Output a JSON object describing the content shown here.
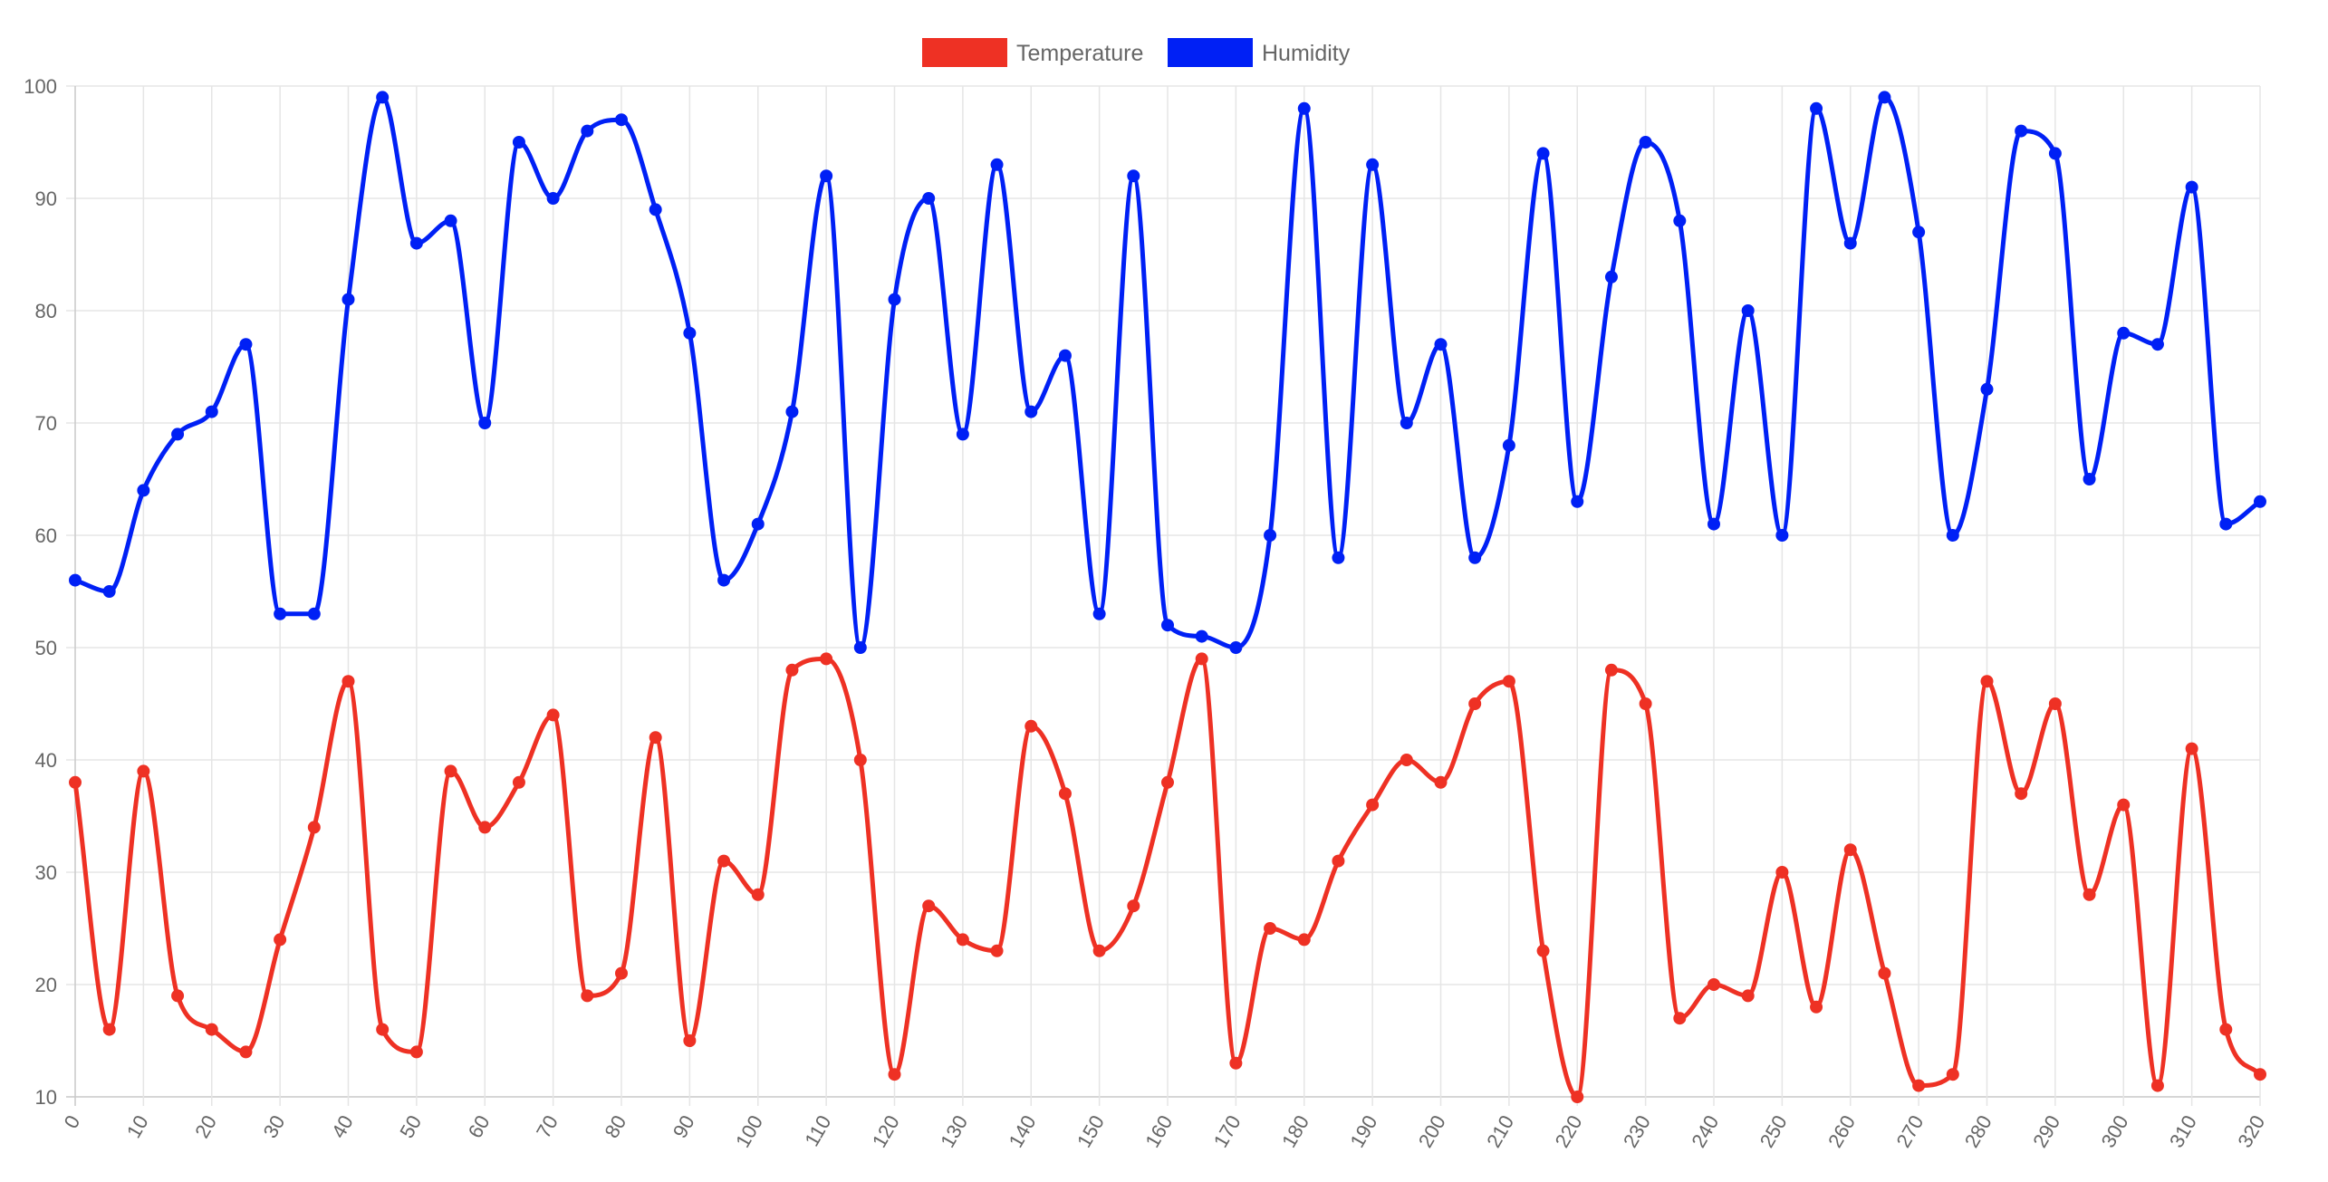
{
  "chart_data": {
    "type": "line",
    "title": "",
    "xlabel": "",
    "ylabel": "",
    "legend_position": "top",
    "grid": true,
    "ylim": [
      10,
      100
    ],
    "xlim": [
      0,
      320
    ],
    "x_ticks": [
      "0",
      "10",
      "20",
      "30",
      "40",
      "50",
      "60",
      "70",
      "80",
      "90",
      "100",
      "110",
      "120",
      "130",
      "140",
      "150",
      "160",
      "170",
      "180",
      "190",
      "200",
      "210",
      "220",
      "230",
      "240",
      "250",
      "260",
      "270",
      "280",
      "290",
      "300",
      "310",
      "320"
    ],
    "y_ticks": [
      "10",
      "20",
      "30",
      "40",
      "50",
      "60",
      "70",
      "80",
      "90",
      "100"
    ],
    "x": [
      0,
      5,
      10,
      15,
      20,
      25,
      30,
      35,
      40,
      45,
      50,
      55,
      60,
      65,
      70,
      75,
      80,
      85,
      90,
      95,
      100,
      105,
      110,
      115,
      120,
      125,
      130,
      135,
      140,
      145,
      150,
      155,
      160,
      165,
      170,
      175,
      180,
      185,
      190,
      195,
      200,
      205,
      210,
      215,
      220,
      225,
      230,
      235,
      240,
      245,
      250,
      255,
      260,
      265,
      270,
      275,
      280,
      285,
      290,
      295,
      300,
      305,
      310,
      315,
      320
    ],
    "series": [
      {
        "name": "Temperature",
        "color": "#EE3124",
        "values": [
          38,
          16,
          39,
          19,
          16,
          14,
          24,
          34,
          47,
          16,
          14,
          39,
          34,
          38,
          44,
          19,
          21,
          42,
          15,
          31,
          28,
          48,
          49,
          40,
          12,
          27,
          24,
          23,
          43,
          37,
          23,
          27,
          38,
          49,
          13,
          25,
          24,
          31,
          36,
          40,
          38,
          45,
          47,
          23,
          10,
          48,
          45,
          17,
          20,
          19,
          30,
          18,
          32,
          21,
          11,
          12,
          47,
          37,
          45,
          28,
          36,
          11,
          41,
          16,
          12
        ]
      },
      {
        "name": "Humidity",
        "color": "#0020F5",
        "values": [
          56,
          55,
          64,
          69,
          71,
          77,
          53,
          53,
          81,
          99,
          86,
          88,
          70,
          95,
          90,
          96,
          97,
          89,
          78,
          56,
          61,
          71,
          92,
          50,
          81,
          90,
          69,
          93,
          71,
          76,
          53,
          92,
          52,
          51,
          50,
          60,
          98,
          58,
          93,
          70,
          77,
          58,
          68,
          94,
          63,
          83,
          95,
          88,
          61,
          80,
          60,
          98,
          86,
          99,
          87,
          60,
          73,
          96,
          94,
          65,
          78,
          77,
          91,
          61,
          63
        ]
      }
    ]
  }
}
